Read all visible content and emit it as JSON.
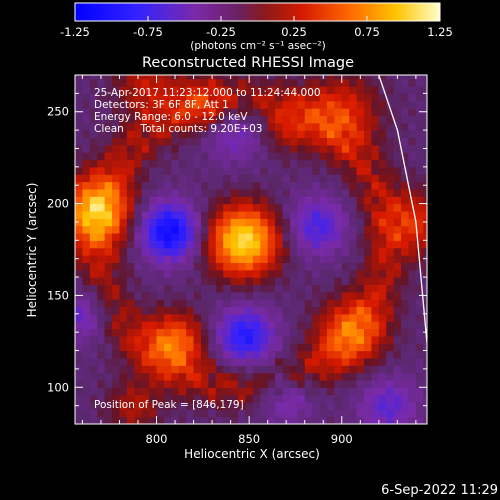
{
  "chart_data": {
    "type": "heatmap",
    "title": "Reconstructed RHESSI Image",
    "xlabel": "Heliocentric X (arcsec)",
    "ylabel": "Heliocentric Y (arcsec)",
    "xlim": [
      756,
      946
    ],
    "ylim": [
      80,
      270
    ],
    "xticks": [
      "800",
      "850",
      "900"
    ],
    "yticks": [
      "100",
      "150",
      "200",
      "250"
    ],
    "colorbar": {
      "range": [
        -1.25,
        1.25
      ],
      "ticks": [
        "-1.25",
        "-0.75",
        "-0.25",
        "0.25",
        "0.75",
        "1.25"
      ],
      "unit_label": "(photons cm⁻² s⁻¹ asec⁻²)"
    },
    "annotations": [
      "25-Apr-2017 11:23:12.000 to 11:24:44.000",
      "Detectors: 3F 6F 8F, Att 1",
      "Energy Range: 6.0 - 12.0 keV",
      "Clean     Total counts: 9.20E+03"
    ],
    "peak_label": "Position of Peak = [846,179]",
    "peak": {
      "x": 846,
      "y": 179
    },
    "limb_line": {
      "x": [
        920,
        930,
        940,
        946
      ],
      "y": [
        270,
        240,
        190,
        124
      ]
    },
    "sources": [
      {
        "x": 847,
        "y": 180,
        "peak": 1.25,
        "sigma": 13
      },
      {
        "x": 767,
        "y": 196,
        "peak": 0.95,
        "sigma": 13
      },
      {
        "x": 810,
        "y": 125,
        "peak": 0.75,
        "sigma": 11
      },
      {
        "x": 905,
        "y": 130,
        "peak": 0.6,
        "sigma": 13
      },
      {
        "x": 795,
        "y": 265,
        "peak": 0.4,
        "sigma": 12
      },
      {
        "x": 900,
        "y": 250,
        "peak": 0.5,
        "sigma": 14
      },
      {
        "x": 825,
        "y": 255,
        "peak": 0.35,
        "sigma": 10
      },
      {
        "x": 940,
        "y": 190,
        "peak": 0.5,
        "sigma": 12
      },
      {
        "x": 788,
        "y": 90,
        "peak": 0.35,
        "sigma": 10
      },
      {
        "x": 870,
        "y": 240,
        "peak": 0.3,
        "sigma": 9
      }
    ],
    "negative_lobes": [
      {
        "x": 807,
        "y": 185,
        "depth": -0.95,
        "sigma": 11
      },
      {
        "x": 887,
        "y": 188,
        "depth": -0.55,
        "sigma": 11
      },
      {
        "x": 848,
        "y": 128,
        "depth": -0.75,
        "sigma": 11
      },
      {
        "x": 842,
        "y": 238,
        "depth": -0.35,
        "sigma": 11
      },
      {
        "x": 760,
        "y": 140,
        "depth": -0.4,
        "sigma": 10
      },
      {
        "x": 925,
        "y": 90,
        "depth": -0.45,
        "sigma": 11
      },
      {
        "x": 870,
        "y": 95,
        "depth": -0.4,
        "sigma": 10
      }
    ],
    "ring_radius": 78,
    "ring_amplitude": 0.45
  },
  "footer": {
    "date": "6-Sep-2022 11:29"
  }
}
